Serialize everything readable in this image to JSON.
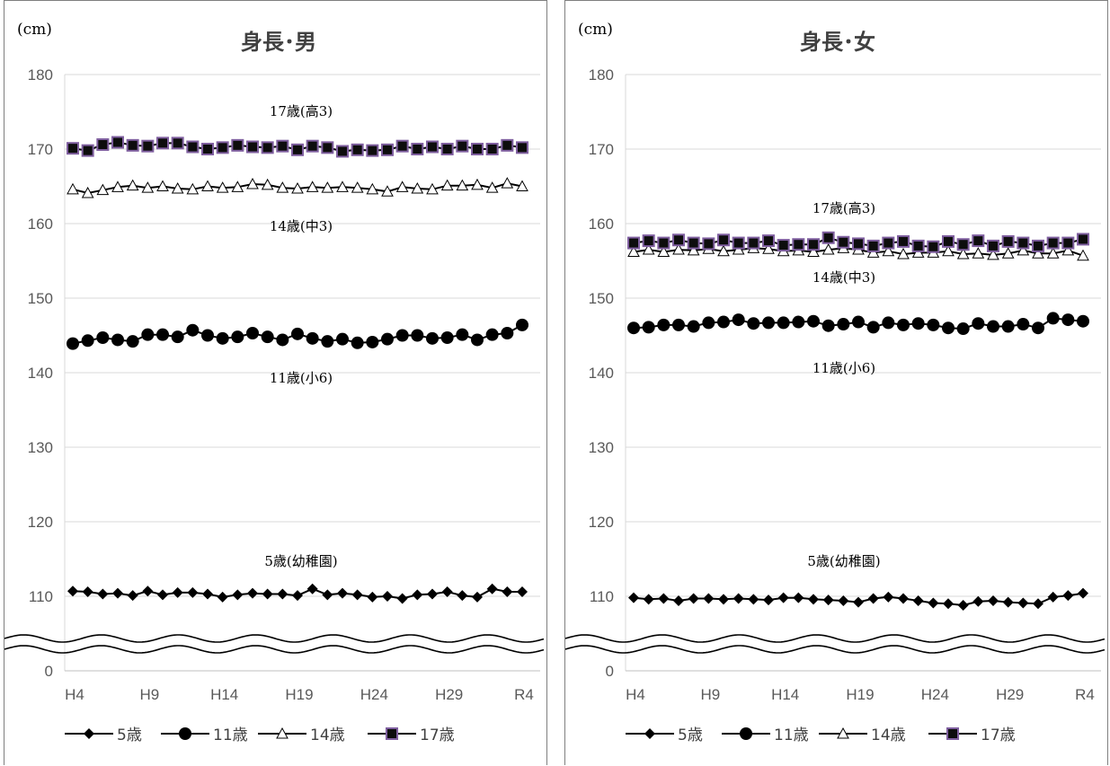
{
  "chart_data": [
    {
      "type": "line",
      "title": "身長･男",
      "unit_label": "(cm)",
      "y_ticks": [
        "180",
        "170",
        "160",
        "150",
        "140",
        "130",
        "120",
        "110",
        "0"
      ],
      "x_ticks": [
        "H4",
        "H9",
        "H14",
        "H19",
        "H24",
        "H29",
        "R4"
      ],
      "axis_break": true,
      "ylim": [
        100,
        180
      ],
      "grid": true,
      "legend_position": "bottom",
      "annotations": [
        "17歳(高3)",
        "14歳(中3)",
        "11歳(小6)",
        "5歳(幼稚園)"
      ],
      "series": [
        {
          "name": "5歳",
          "marker": "diamond",
          "values": [
            110.7,
            110.6,
            110.3,
            110.4,
            110.1,
            110.7,
            110.2,
            110.5,
            110.5,
            110.3,
            109.9,
            110.2,
            110.4,
            110.3,
            110.3,
            110.1,
            111.0,
            110.2,
            110.4,
            110.2,
            109.9,
            110.0,
            109.7,
            110.2,
            110.3,
            110.6,
            110.1,
            109.9,
            111.0,
            110.6,
            110.6
          ]
        },
        {
          "name": "11歳",
          "marker": "circle",
          "values": [
            143.9,
            144.3,
            144.7,
            144.4,
            144.2,
            145.1,
            145.1,
            144.8,
            145.7,
            145.0,
            144.6,
            144.8,
            145.3,
            144.8,
            144.4,
            145.2,
            144.6,
            144.2,
            144.5,
            144.0,
            144.1,
            144.5,
            145.0,
            145.0,
            144.6,
            144.7,
            145.1,
            144.4,
            145.1,
            145.3,
            146.4
          ]
        },
        {
          "name": "14歳",
          "marker": "triangle",
          "values": [
            164.6,
            164.1,
            164.5,
            164.9,
            165.1,
            164.8,
            165.0,
            164.7,
            164.6,
            165.0,
            164.8,
            164.9,
            165.3,
            165.2,
            164.8,
            164.7,
            164.9,
            164.8,
            164.9,
            164.8,
            164.6,
            164.3,
            164.9,
            164.7,
            164.6,
            165.1,
            165.1,
            165.2,
            164.8,
            165.4,
            165.0
          ]
        },
        {
          "name": "17歳",
          "marker": "square",
          "values": [
            170.1,
            169.8,
            170.6,
            170.9,
            170.5,
            170.4,
            170.8,
            170.8,
            170.3,
            170.0,
            170.2,
            170.5,
            170.3,
            170.2,
            170.4,
            169.9,
            170.4,
            170.2,
            169.7,
            169.9,
            169.8,
            169.9,
            170.4,
            170.0,
            170.3,
            170.0,
            170.4,
            170.0,
            170.0,
            170.5,
            170.2
          ]
        }
      ]
    },
    {
      "type": "line",
      "title": "身長･女",
      "unit_label": "(cm)",
      "y_ticks": [
        "180",
        "170",
        "160",
        "150",
        "140",
        "130",
        "120",
        "110",
        "0"
      ],
      "x_ticks": [
        "H4",
        "H9",
        "H14",
        "H19",
        "H24",
        "H29",
        "R4"
      ],
      "axis_break": true,
      "ylim": [
        100,
        180
      ],
      "grid": true,
      "legend_position": "bottom",
      "annotations": [
        "17歳(高3)",
        "14歳(中3)",
        "11歳(小6)",
        "5歳(幼稚園)"
      ],
      "series": [
        {
          "name": "5歳",
          "marker": "diamond",
          "values": [
            109.8,
            109.6,
            109.7,
            109.4,
            109.7,
            109.7,
            109.6,
            109.7,
            109.6,
            109.5,
            109.8,
            109.8,
            109.6,
            109.5,
            109.4,
            109.2,
            109.7,
            109.9,
            109.7,
            109.4,
            109.1,
            109.0,
            108.8,
            109.3,
            109.4,
            109.2,
            109.1,
            109.0,
            109.9,
            110.1,
            110.4
          ]
        },
        {
          "name": "11歳",
          "marker": "circle",
          "values": [
            146.0,
            146.1,
            146.4,
            146.4,
            146.2,
            146.7,
            146.8,
            147.1,
            146.6,
            146.7,
            146.7,
            146.8,
            146.9,
            146.3,
            146.5,
            146.8,
            146.1,
            146.7,
            146.4,
            146.6,
            146.4,
            146.0,
            145.9,
            146.6,
            146.2,
            146.2,
            146.5,
            146.0,
            147.3,
            147.1,
            146.9
          ]
        },
        {
          "name": "14歳",
          "marker": "triangle",
          "values": [
            156.2,
            156.5,
            156.2,
            156.5,
            156.4,
            156.6,
            156.3,
            156.5,
            156.7,
            156.6,
            156.3,
            156.4,
            156.2,
            156.5,
            156.7,
            156.5,
            156.1,
            156.3,
            155.9,
            156.1,
            156.1,
            156.3,
            155.9,
            156.0,
            155.8,
            156.0,
            156.4,
            156.0,
            156.0,
            156.4,
            155.7
          ]
        },
        {
          "name": "17歳",
          "marker": "square",
          "values": [
            157.4,
            157.7,
            157.4,
            157.8,
            157.4,
            157.3,
            157.8,
            157.4,
            157.4,
            157.7,
            157.1,
            157.2,
            157.2,
            158.1,
            157.5,
            157.3,
            157.0,
            157.4,
            157.6,
            157.0,
            156.9,
            157.6,
            157.2,
            157.7,
            157.0,
            157.6,
            157.4,
            157.0,
            157.4,
            157.4,
            157.9
          ]
        }
      ]
    }
  ]
}
